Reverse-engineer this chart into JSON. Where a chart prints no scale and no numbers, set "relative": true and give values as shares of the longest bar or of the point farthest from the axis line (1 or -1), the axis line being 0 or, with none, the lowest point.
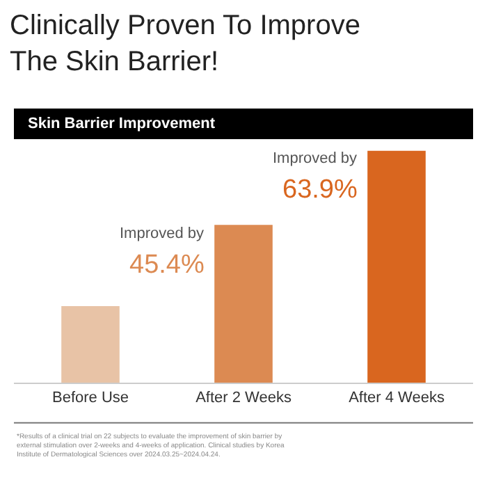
{
  "chart_data": {
    "type": "bar",
    "title": "Clinically Proven To Improve The Skin Barrier!",
    "subtitle": "Skin Barrier Improvement",
    "categories": [
      "Before Use",
      "After 2 Weeks",
      "After 4 Weeks"
    ],
    "values": [
      0.33,
      0.68,
      1
    ],
    "colors": [
      "#e8c3a6",
      "#dc8a52",
      "#d9661f"
    ],
    "relative": true,
    "annotations": [
      {
        "text": "Improved by",
        "x": "After 2 Weeks",
        "y": 0.68
      },
      {
        "text": "45.4%",
        "x": "After 2 Weeks",
        "y": 0.68
      },
      {
        "text": "Improved by",
        "x": "After 4 Weeks",
        "y": 1
      },
      {
        "text": "63.9%",
        "x": "After 4 Weeks",
        "y": 1
      },
      "*Results of a clinical trial on 22 subjects to evaluate the improvement of skin barrier by external stimulation over 2-weeks and 4-weeks of application. Clinical studies by Korea Institute of Dermatological Sciences over 2024.03.25~2024.04.24."
    ],
    "legend": false
  }
}
